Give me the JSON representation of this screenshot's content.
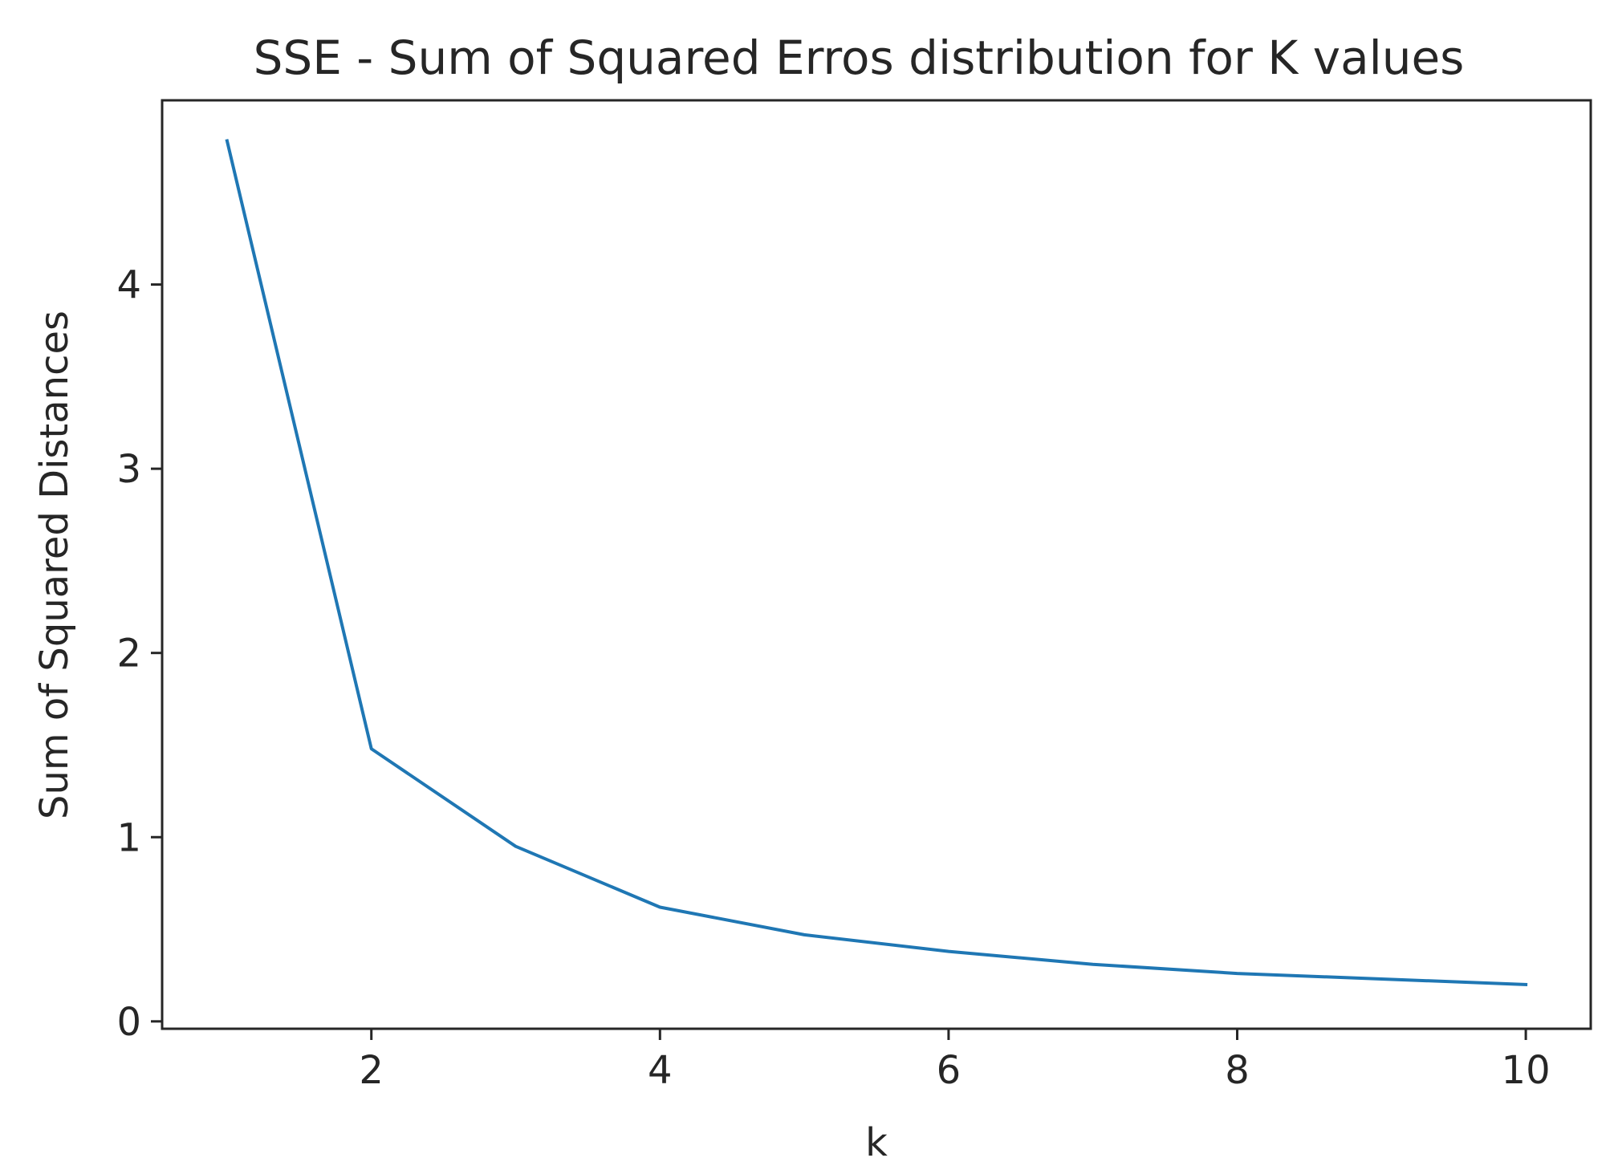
{
  "chart_data": {
    "type": "line",
    "title": "SSE - Sum of Squared Erros distribution for K values",
    "xlabel": "k",
    "ylabel": "Sum of Squared Distances",
    "x": [
      1,
      2,
      3,
      4,
      5,
      6,
      7,
      8,
      9,
      10
    ],
    "series": [
      {
        "values": [
          4.78,
          1.48,
          0.95,
          0.62,
          0.47,
          0.38,
          0.31,
          0.26,
          0.23,
          0.2
        ],
        "color": "#1f77b4"
      }
    ],
    "xticks": [
      2,
      4,
      6,
      8,
      10
    ],
    "yticks": [
      0,
      1,
      2,
      3,
      4
    ],
    "xlim": [
      0.55,
      10.45
    ],
    "ylim": [
      -0.04,
      5.0
    ],
    "grid": false,
    "legend": "none"
  }
}
